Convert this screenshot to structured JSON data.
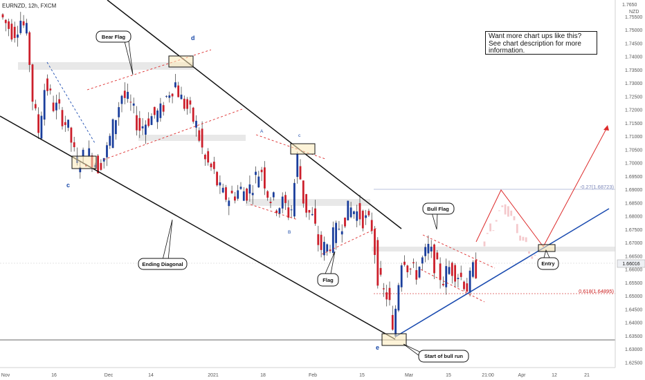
{
  "header": {
    "symbol_line": "EURNZD, 12h, FXCM"
  },
  "info_box": {
    "text": "Want more chart ups like this? See chart description for more information."
  },
  "price_axis": {
    "unit": "NZD",
    "ticks": [
      "1.75500",
      "1.75000",
      "1.74500",
      "1.74000",
      "1.73500",
      "1.73000",
      "1.72500",
      "1.72000",
      "1.71500",
      "1.71000",
      "1.70500",
      "1.70000",
      "1.69500",
      "1.69000",
      "1.68500",
      "1.68000",
      "1.67500",
      "1.67000",
      "1.66500",
      "1.66000",
      "1.65500",
      "1.65000",
      "1.64500",
      "1.64000",
      "1.63500",
      "1.63000",
      "1.62500"
    ],
    "tick_values": [
      1.755,
      1.75,
      1.745,
      1.74,
      1.735,
      1.73,
      1.725,
      1.72,
      1.715,
      1.71,
      1.705,
      1.7,
      1.695,
      1.69,
      1.685,
      1.68,
      1.675,
      1.67,
      1.665,
      1.66,
      1.655,
      1.65,
      1.645,
      1.64,
      1.635,
      1.63,
      1.625
    ],
    "top_label": "1.7650",
    "current_price": "1.66016",
    "current_value": 1.66016
  },
  "time_axis": {
    "labels": [
      "Nov",
      "16",
      "Dec",
      "14",
      "2021",
      "18",
      "Feb",
      "15",
      "Mar",
      "15",
      "21:00",
      "Apr",
      "12",
      "21"
    ]
  },
  "annotations": {
    "bear_flag": "Bear Flag",
    "bull_flag": "Bull Flag",
    "ending_diagonal": "Ending Diagonal",
    "flag": "Flag",
    "entry": "Entry",
    "start_bull_run": "Start of bull run",
    "fib_027": "-0.27(1.68723)",
    "fib_0618": "0.618(1.64895)"
  },
  "waves": {
    "c1": "c",
    "d": "d",
    "A": "A",
    "c2": "c",
    "B": "B",
    "e": "e"
  },
  "colors": {
    "up_candle": "#1a3e9c",
    "down_candle": "#cc1f2b",
    "trendline": "#000000",
    "support_line": "#1a4bb0",
    "projection": "#dd2a2a",
    "zone": "#e8e8e8",
    "highlight_box": "#fbe9b8"
  },
  "chart_data": {
    "type": "candlestick",
    "symbol": "EURNZD",
    "timeframe": "12h",
    "ylim": [
      1.622,
      1.7665
    ],
    "key_levels": [
      {
        "label": "-0.27(1.68723)",
        "value": 1.68723
      },
      {
        "label": "0.618(1.64895)",
        "value": 1.64895
      },
      {
        "label": "current",
        "value": 1.66016
      }
    ],
    "notable_prices": {
      "high_wave_d": 1.734,
      "low_wave_e": 1.633,
      "flag_low": 1.666,
      "projected_target": 1.709
    }
  }
}
